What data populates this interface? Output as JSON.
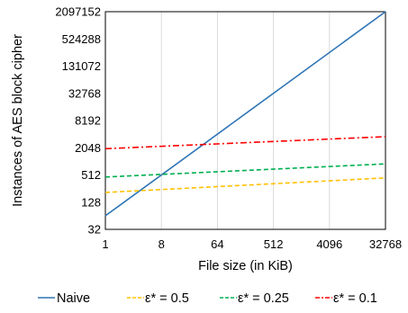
{
  "chart_data": {
    "type": "line",
    "title": "",
    "xlabel": "File size (in KiB)",
    "ylabel": "Instances of AES block cipher",
    "x_scale": "log2",
    "y_scale": "log2",
    "xlim": [
      1,
      32768
    ],
    "ylim": [
      32,
      2097152
    ],
    "x_ticks": [
      1,
      8,
      64,
      512,
      4096,
      32768
    ],
    "x_tick_labels": [
      "1",
      "8",
      "64",
      "512",
      "4096",
      "32768"
    ],
    "y_ticks": [
      32,
      128,
      512,
      2048,
      8192,
      32768,
      131072,
      524288,
      2097152
    ],
    "y_tick_labels": [
      "32",
      "128",
      "512",
      "2048",
      "8192",
      "32768",
      "131072",
      "524288",
      "2097152"
    ],
    "grid": "vertical",
    "legend_position": "bottom",
    "x": [
      1,
      32768
    ],
    "series": [
      {
        "name": "Naive",
        "color": "#2E75B6",
        "dash": "solid",
        "values": [
          64,
          2097152
        ]
      },
      {
        "name": "ε* = 0.5",
        "color": "#FFC000",
        "dash": "dash",
        "values": [
          210,
          440
        ]
      },
      {
        "name": "ε* = 0.25",
        "color": "#00B050",
        "dash": "dash",
        "values": [
          460,
          900
        ]
      },
      {
        "name": "ε* = 0.1",
        "color": "#FF0000",
        "dash": "dashdot",
        "values": [
          1950,
          3600
        ]
      }
    ]
  }
}
